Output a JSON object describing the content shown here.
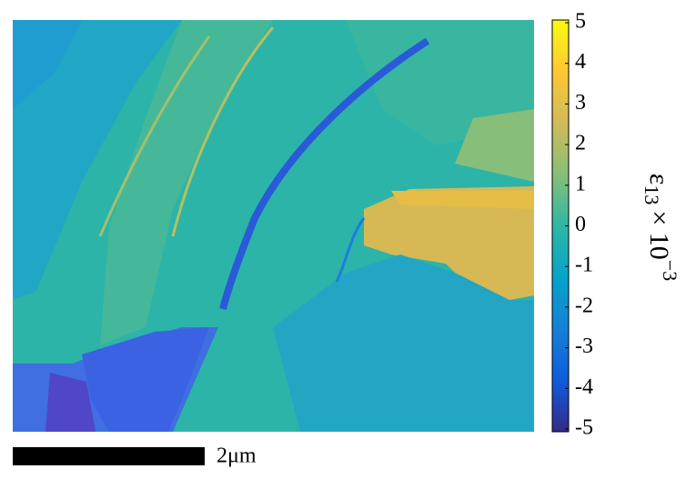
{
  "chart_data": {
    "type": "heatmap",
    "colorbar": {
      "zlim": [
        -5,
        5
      ],
      "zticks": [
        -5,
        -4,
        -3,
        -2,
        -1,
        0,
        1,
        2,
        3,
        4,
        5
      ],
      "colormap": [
        "#352a87",
        "#0f5cdd",
        "#1481d6",
        "#06a4ca",
        "#2eb7a4",
        "#87bf77",
        "#d1bb59",
        "#fec832",
        "#f9fb0e"
      ],
      "label": {
        "symbol": "ε",
        "subscript": "13",
        "times": "× 10",
        "exponent": "−3"
      }
    },
    "scale_bar": {
      "label": "2μm"
    }
  }
}
